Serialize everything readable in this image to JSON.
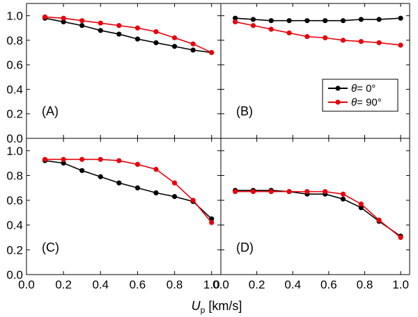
{
  "chart_data": {
    "type": "line",
    "xlabel_main": "U",
    "xlabel_sub": "p",
    "xlabel_unit": " [km/s]",
    "xlim": [
      0.0,
      1.05
    ],
    "ylim": [
      0.0,
      1.1
    ],
    "x_ticks": [
      "0.0",
      "0.2",
      "0.4",
      "0.6",
      "0.8",
      "1.0"
    ],
    "y_ticks": [
      "0.0",
      "0.2",
      "0.4",
      "0.6",
      "0.8",
      "1.0"
    ],
    "series_colors": [
      "#000000",
      "#e8000b"
    ],
    "legend": {
      "placement": "panel-B-lower-right",
      "entries": [
        {
          "symbol": "θ",
          "text": "= 0°"
        },
        {
          "symbol": "θ",
          "text": "= 90°"
        }
      ]
    },
    "panels": [
      {
        "label": "(A)",
        "series": [
          {
            "name": "θ = 0°",
            "x": [
              0.1,
              0.2,
              0.3,
              0.4,
              0.5,
              0.6,
              0.7,
              0.8,
              0.9,
              1.0
            ],
            "y": [
              0.98,
              0.95,
              0.92,
              0.88,
              0.85,
              0.81,
              0.78,
              0.75,
              0.72,
              0.7
            ]
          },
          {
            "name": "θ = 90°",
            "x": [
              0.1,
              0.2,
              0.3,
              0.4,
              0.5,
              0.6,
              0.7,
              0.8,
              0.9,
              1.0
            ],
            "y": [
              0.99,
              0.98,
              0.96,
              0.94,
              0.92,
              0.9,
              0.87,
              0.82,
              0.77,
              0.7
            ]
          }
        ]
      },
      {
        "label": "(B)",
        "series": [
          {
            "name": "θ = 0°",
            "x": [
              0.08,
              0.18,
              0.28,
              0.38,
              0.48,
              0.58,
              0.68,
              0.78,
              0.88,
              1.0
            ],
            "y": [
              0.98,
              0.97,
              0.96,
              0.96,
              0.96,
              0.96,
              0.96,
              0.97,
              0.97,
              0.98
            ]
          },
          {
            "name": "θ = 90°",
            "x": [
              0.08,
              0.18,
              0.28,
              0.38,
              0.48,
              0.58,
              0.68,
              0.78,
              0.88,
              1.0
            ],
            "y": [
              0.95,
              0.92,
              0.89,
              0.86,
              0.83,
              0.82,
              0.8,
              0.79,
              0.78,
              0.76
            ]
          }
        ]
      },
      {
        "label": "(C)",
        "series": [
          {
            "name": "θ = 0°",
            "x": [
              0.1,
              0.2,
              0.3,
              0.4,
              0.5,
              0.6,
              0.7,
              0.8,
              0.9,
              1.0
            ],
            "y": [
              0.92,
              0.9,
              0.84,
              0.79,
              0.74,
              0.7,
              0.66,
              0.63,
              0.59,
              0.45
            ]
          },
          {
            "name": "θ = 90°",
            "x": [
              0.1,
              0.2,
              0.3,
              0.4,
              0.5,
              0.6,
              0.7,
              0.8,
              0.9,
              1.0
            ],
            "y": [
              0.93,
              0.93,
              0.93,
              0.93,
              0.92,
              0.89,
              0.85,
              0.74,
              0.6,
              0.42
            ]
          }
        ]
      },
      {
        "label": "(D)",
        "series": [
          {
            "name": "θ = 0°",
            "x": [
              0.08,
              0.18,
              0.28,
              0.38,
              0.48,
              0.58,
              0.68,
              0.78,
              0.88,
              1.0
            ],
            "y": [
              0.68,
              0.68,
              0.68,
              0.67,
              0.65,
              0.65,
              0.61,
              0.54,
              0.43,
              0.31
            ]
          },
          {
            "name": "θ = 90°",
            "x": [
              0.08,
              0.18,
              0.28,
              0.38,
              0.48,
              0.58,
              0.68,
              0.78,
              0.88,
              1.0
            ],
            "y": [
              0.67,
              0.67,
              0.67,
              0.67,
              0.67,
              0.67,
              0.65,
              0.57,
              0.44,
              0.3
            ]
          }
        ]
      }
    ]
  }
}
